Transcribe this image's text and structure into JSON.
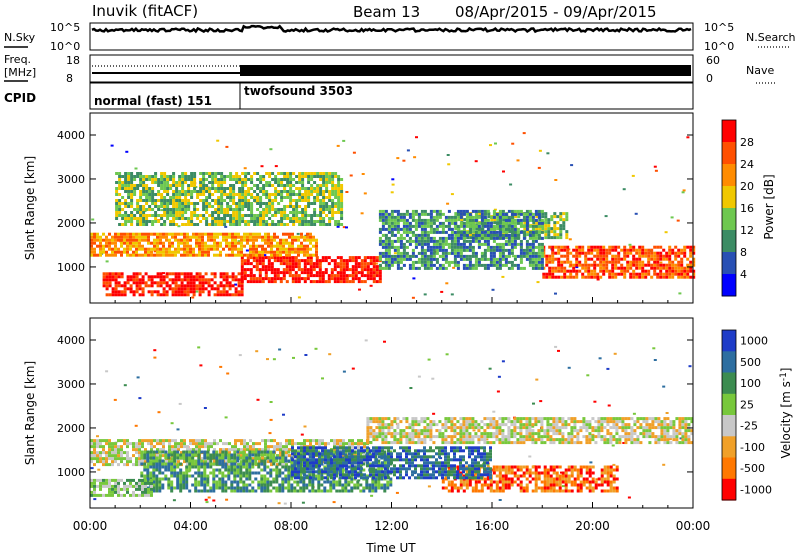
{
  "header": {
    "title": "Inuvik (fitACF)",
    "beam": "Beam 13",
    "date_range": "08/Apr/2015 - 09/Apr/2015"
  },
  "strips": {
    "nsky_label": "N.Sky",
    "nsearch_label": "N.Search",
    "freq_label_1": "Freq.",
    "freq_label_2": "[MHz]",
    "nave_label": "Nave",
    "cpid_label": "CPID",
    "nsky_ticks": [
      "10^5",
      "10^0"
    ],
    "nsearch_ticks": [
      "10^5",
      "10^0"
    ],
    "freq_ticks": [
      "18",
      "8"
    ],
    "nave_ticks": [
      "60",
      "0"
    ],
    "cpid_segments": [
      {
        "label": "normal (fast) 151",
        "start_hour": 0,
        "end_hour": 6
      },
      {
        "label": "twofsound 3503",
        "start_hour": 6,
        "end_hour": 24
      }
    ]
  },
  "colors": {
    "power_scale": [
      "#0000ff",
      "#2850b4",
      "#3c8c64",
      "#6ec850",
      "#f0c800",
      "#ff8c00",
      "#ff5000",
      "#ff0000"
    ],
    "velocity_scale": [
      "#1e3cc8",
      "#2d6ea0",
      "#3c8c50",
      "#78c83c",
      "#c8c8c8",
      "#f0a028",
      "#ff7800",
      "#ff0000"
    ]
  },
  "chart_data": [
    {
      "type": "heatmap",
      "name": "power",
      "xlabel": "",
      "ylabel": "Slant Range [km]",
      "xlim": [
        0,
        24
      ],
      "ylim": [
        180,
        4500
      ],
      "yticks": [
        1000,
        2000,
        3000,
        4000
      ],
      "colorbar_label": "Power [dB]",
      "colorbar_range": [
        0,
        32
      ],
      "colorbar_ticks": [
        "4",
        "8",
        "12",
        "16",
        "20",
        "24",
        "28"
      ],
      "bands": [
        {
          "range_km": [
            400,
            900
          ],
          "hours": [
            0.5,
            6.0
          ],
          "level": 7
        },
        {
          "range_km": [
            700,
            1300
          ],
          "hours": [
            6.0,
            11.5
          ],
          "level": 7
        },
        {
          "range_km": [
            1300,
            1800
          ],
          "hours": [
            0,
            9.0
          ],
          "level": 5
        },
        {
          "range_km": [
            1700,
            2300
          ],
          "hours": [
            14.5,
            19.0
          ],
          "level": 3
        },
        {
          "range_km": [
            800,
            1500
          ],
          "hours": [
            18.0,
            24.0
          ],
          "level": 6
        },
        {
          "range_km": [
            2000,
            3200
          ],
          "hours": [
            1.0,
            10.0
          ],
          "level": 3
        },
        {
          "range_km": [
            1000,
            2300
          ],
          "hours": [
            11.5,
            18.0
          ],
          "level": 2
        }
      ]
    },
    {
      "type": "heatmap",
      "name": "velocity",
      "xlabel": "Time UT",
      "ylabel": "Slant Range [km]",
      "xlim": [
        0,
        24
      ],
      "ylim": [
        180,
        4500
      ],
      "yticks": [
        1000,
        2000,
        3000,
        4000
      ],
      "xtick_labels": [
        "00:00",
        "04:00",
        "08:00",
        "12:00",
        "16:00",
        "20:00",
        "00:00"
      ],
      "colorbar_label": "Velocity [m s^-1]",
      "colorbar_ticks": [
        "1000",
        "500",
        "100",
        "25",
        "-25",
        "-100",
        "-500",
        "-1000"
      ],
      "bands": [
        {
          "range_km": [
            1200,
            1800
          ],
          "hours": [
            0,
            11.0
          ],
          "level": 4
        },
        {
          "range_km": [
            600,
            1500
          ],
          "hours": [
            2.0,
            12.0
          ],
          "level": 2
        },
        {
          "range_km": [
            1700,
            2300
          ],
          "hours": [
            11.0,
            24.0
          ],
          "level": 4
        },
        {
          "range_km": [
            600,
            1200
          ],
          "hours": [
            14.0,
            21.0
          ],
          "level": 6
        },
        {
          "range_km": [
            900,
            1600
          ],
          "hours": [
            8.0,
            16.0
          ],
          "level": 1
        },
        {
          "range_km": [
            500,
            900
          ],
          "hours": [
            0,
            2.5
          ],
          "level": 3
        }
      ]
    }
  ]
}
